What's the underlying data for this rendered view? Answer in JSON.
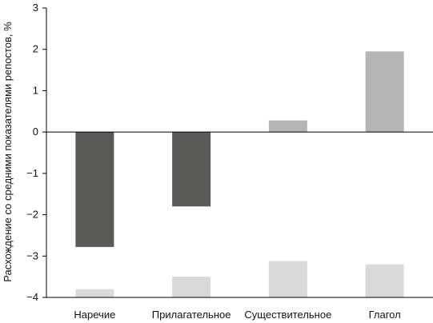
{
  "chart_data": {
    "type": "bar",
    "categories": [
      "Наречие",
      "Прилагательное",
      "Существительное",
      "Глагол"
    ],
    "values": [
      -2.78,
      -1.8,
      0.28,
      1.95
    ],
    "lower_values": [
      -3.8,
      -3.5,
      -3.12,
      -3.2
    ],
    "ylabel": "Расхождение со средними показателями репостов, %",
    "xlabel": "",
    "ylim": [
      -4,
      3
    ],
    "yticks": [
      "3",
      "2",
      "1",
      "0",
      "−1",
      "−2",
      "−3",
      "−4"
    ],
    "grid": false,
    "legend": "none"
  },
  "colors": {
    "negative_bar": "#5a5a59",
    "positive_bar": "#b5b5b5",
    "lower_bar": "#d9d9d9",
    "axis": "#000000"
  }
}
